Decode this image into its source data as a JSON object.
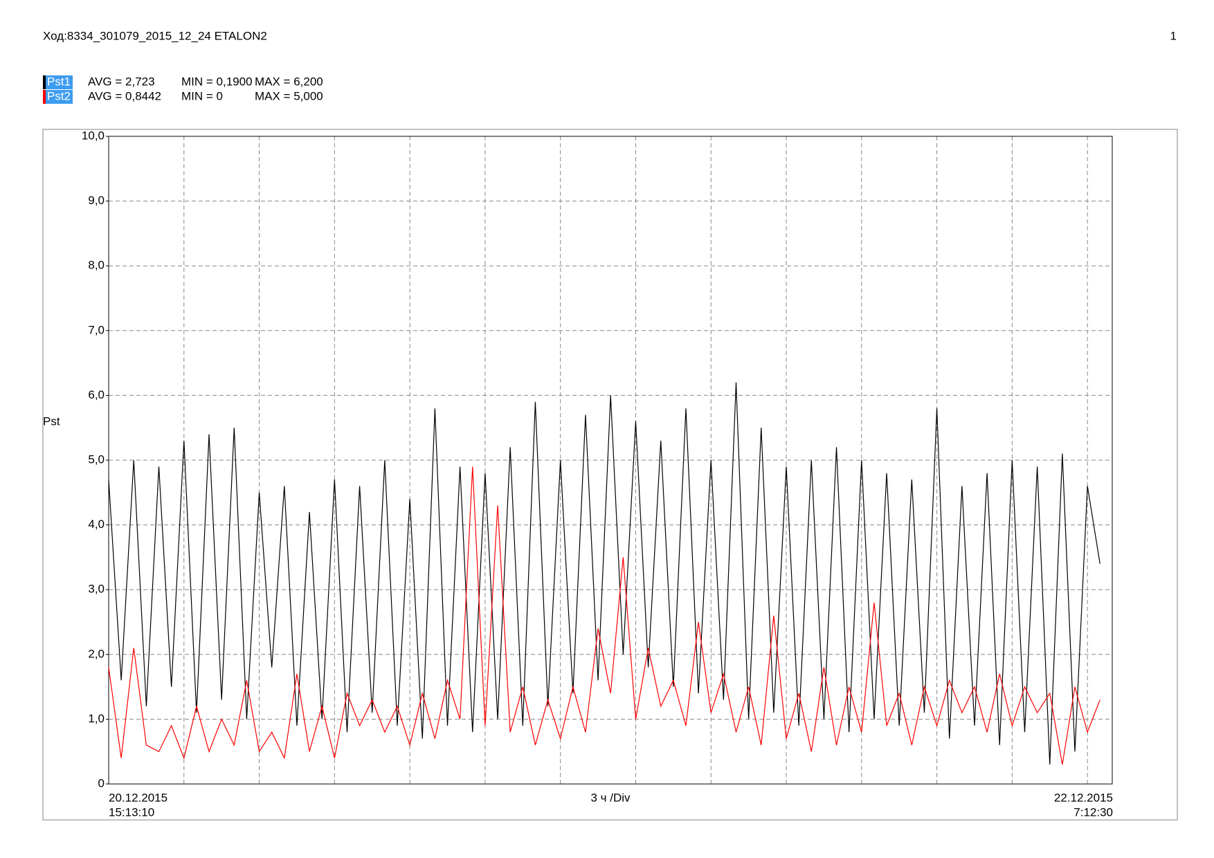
{
  "header": {
    "title": "Ход:8334_301079_2015_12_24 ETALON2",
    "page": "1"
  },
  "chart_data": {
    "type": "line",
    "ylabel": "Pst",
    "x_start_label": [
      "20.12.2015",
      "15:13:10"
    ],
    "x_end_label": [
      "22.12.2015",
      "7:12:30"
    ],
    "x_division_label": "3 ч /Div",
    "xlim": [
      0,
      39.989
    ],
    "x_grid_step": 3,
    "ylim": [
      0,
      10
    ],
    "yticks": [
      0,
      {
        "value": 1,
        "label": "1,0"
      },
      {
        "value": 2,
        "label": "2,0"
      },
      {
        "value": 3,
        "label": "3,0"
      },
      {
        "value": 4,
        "label": "4,0"
      },
      {
        "value": 5,
        "label": "5,0"
      },
      {
        "value": 6,
        "label": "6,0"
      },
      {
        "value": 7,
        "label": "7,0"
      },
      {
        "value": 8,
        "label": "8,0"
      },
      {
        "value": 9,
        "label": "9,0"
      },
      {
        "value": 10,
        "label": "10,0"
      }
    ],
    "grid": true,
    "x": [
      0,
      0.5,
      1,
      1.5,
      2,
      2.5,
      3,
      3.5,
      4,
      4.5,
      5,
      5.5,
      6,
      6.5,
      7,
      7.5,
      8,
      8.5,
      9,
      9.5,
      10,
      10.5,
      11,
      11.5,
      12,
      12.5,
      13,
      13.5,
      14,
      14.5,
      15,
      15.5,
      16,
      16.5,
      17,
      17.5,
      18,
      18.5,
      19,
      19.5,
      20,
      20.5,
      21,
      21.5,
      22,
      22.5,
      23,
      23.5,
      24,
      24.5,
      25,
      25.5,
      26,
      26.5,
      27,
      27.5,
      28,
      28.5,
      29,
      29.5,
      30,
      30.5,
      31,
      31.5,
      32,
      32.5,
      33,
      33.5,
      34,
      34.5,
      35,
      35.5,
      36,
      36.5,
      37,
      37.5,
      38,
      38.5,
      39,
      39.5
    ],
    "series": [
      {
        "name": "Pst1",
        "color": "#000000",
        "stats": [
          "AVG = 2,723",
          "MIN = 0,1900",
          "MAX = 6,200"
        ],
        "values": [
          4.7,
          1.6,
          5.0,
          1.2,
          4.9,
          1.5,
          5.3,
          1.1,
          5.4,
          1.3,
          5.5,
          1.0,
          4.5,
          1.8,
          4.6,
          0.9,
          4.2,
          1.0,
          4.7,
          0.8,
          4.6,
          1.1,
          5.0,
          0.9,
          4.4,
          0.7,
          5.8,
          0.9,
          4.9,
          0.8,
          4.8,
          1.0,
          5.2,
          0.9,
          5.9,
          1.2,
          5.0,
          1.4,
          5.7,
          1.6,
          6.0,
          2.0,
          5.6,
          1.8,
          5.3,
          1.5,
          5.8,
          1.4,
          5.0,
          1.3,
          6.2,
          1.0,
          5.5,
          1.1,
          4.9,
          0.9,
          5.0,
          1.0,
          5.2,
          0.8,
          5.0,
          1.0,
          4.8,
          0.9,
          4.7,
          1.1,
          5.8,
          0.7,
          4.6,
          0.9,
          4.8,
          0.6,
          5.0,
          0.8,
          4.9,
          0.3,
          5.1,
          0.5,
          4.6,
          3.4
        ]
      },
      {
        "name": "Pst2",
        "color": "#ff0000",
        "stats": [
          "AVG = 0,8442",
          "MIN = 0",
          "MAX = 5,000"
        ],
        "values": [
          1.8,
          0.4,
          2.1,
          0.6,
          0.5,
          0.9,
          0.4,
          1.2,
          0.5,
          1.0,
          0.6,
          1.6,
          0.5,
          0.8,
          0.4,
          1.7,
          0.5,
          1.2,
          0.4,
          1.4,
          0.9,
          1.3,
          0.8,
          1.2,
          0.6,
          1.4,
          0.7,
          1.6,
          1.0,
          4.9,
          0.9,
          4.3,
          0.8,
          1.5,
          0.6,
          1.3,
          0.7,
          1.5,
          0.8,
          2.4,
          1.4,
          3.5,
          1.0,
          2.1,
          1.2,
          1.6,
          0.9,
          2.5,
          1.1,
          1.7,
          0.8,
          1.5,
          0.6,
          2.6,
          0.7,
          1.4,
          0.5,
          1.8,
          0.6,
          1.5,
          0.8,
          2.8,
          0.9,
          1.4,
          0.6,
          1.5,
          0.9,
          1.6,
          1.1,
          1.5,
          0.8,
          1.7,
          0.9,
          1.5,
          1.1,
          1.4,
          0.3,
          1.5,
          0.8,
          1.3
        ]
      }
    ]
  }
}
